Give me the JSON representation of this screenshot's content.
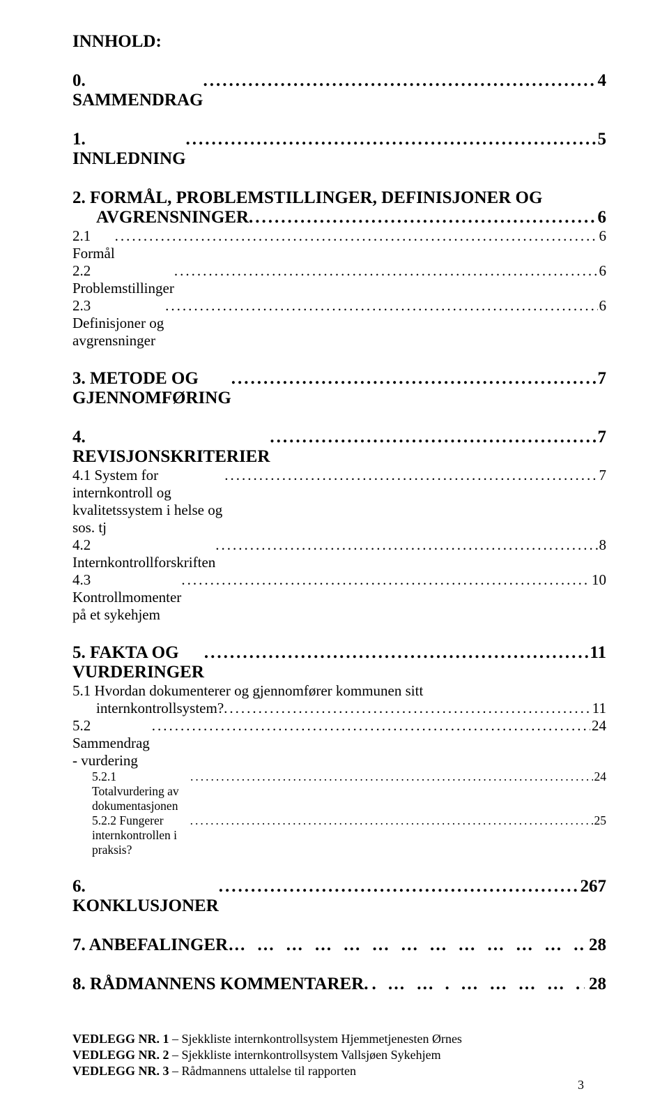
{
  "title": "INNHOLD:",
  "sections": {
    "s0": {
      "num": "0.",
      "label": "SAMMENDRAG",
      "page": "4"
    },
    "s1": {
      "num": "1.",
      "label": "INNLEDNING",
      "page": "5"
    },
    "s2": {
      "num": "2.",
      "first": "FORMÅL, PROBLEMSTILLINGER, DEFINISJONER OG",
      "second": "AVGRENSNINGER",
      "page": "6",
      "subs": {
        "r1": {
          "label": "2.1 Formål",
          "page": "6"
        },
        "r2": {
          "label": "2.2 Problemstillinger",
          "page": "6"
        },
        "r3": {
          "label": "2.3 Definisjoner og avgrensninger",
          "page": "6"
        }
      }
    },
    "s3": {
      "num": "3.",
      "label": "METODE OG GJENNOMFØRING",
      "page": "7"
    },
    "s4": {
      "num": "4.",
      "label": "REVISJONSKRITERIER",
      "page": "7",
      "subs": {
        "r1": {
          "label": "4.1 System for internkontroll og kvalitetssystem i helse og sos. tj",
          "page": "7"
        },
        "r2": {
          "label": "4.2 Internkontrollforskriften",
          "page": "8"
        },
        "r3": {
          "label": "4.3 Kontrollmomenter på et sykehjem",
          "page": "10"
        }
      }
    },
    "s5": {
      "num": "5.",
      "label": "FAKTA OG VURDERINGER",
      "page": "11",
      "subs": {
        "r1": {
          "first": "5.1 Hvordan dokumenterer og gjennomfører kommunen sitt",
          "second": "internkontrollsystem?",
          "page": "11"
        },
        "r2": {
          "label": "5.2 Sammendrag - vurdering",
          "page": "24",
          "subs": {
            "rr1": {
              "label": "5.2.1 Totalvurdering av dokumentasjonen",
              "page": "24"
            },
            "rr2": {
              "label": "5.2.2 Fungerer internkontrollen i praksis?",
              "page": "25"
            }
          }
        }
      }
    },
    "s6": {
      "num": "6.",
      "label": "KONKLUSJONER ",
      "page": "267"
    },
    "s7": {
      "num": "7.",
      "label": "ANBEFALINGER",
      "page": "28"
    },
    "s8": {
      "num": "8.",
      "label": "RÅDMANNENS KOMMENTARER",
      "page": "28"
    }
  },
  "vedlegg": {
    "v1": {
      "bold": "VEDLEGG NR. 1",
      "rest": " – Sjekkliste internkontrollsystem Hjemmetjenesten Ørnes"
    },
    "v2": {
      "bold": "VEDLEGG NR. 2",
      "rest": " – Sjekkliste internkontrollsystem Vallsjøen Sykehjem"
    },
    "v3": {
      "bold": "VEDLEGG NR. 3",
      "rest": " – Rådmannens uttalelse til rapporten"
    }
  },
  "footerPage": "3",
  "leaderDots": "..................................................................................................................................................................",
  "ellipsisDots": "… … … … … … … … … … … … … … … … … … … … … … … … … … … … … … … … … … … … … …",
  "periodDots": ".. … … . … …  … …  ... "
}
